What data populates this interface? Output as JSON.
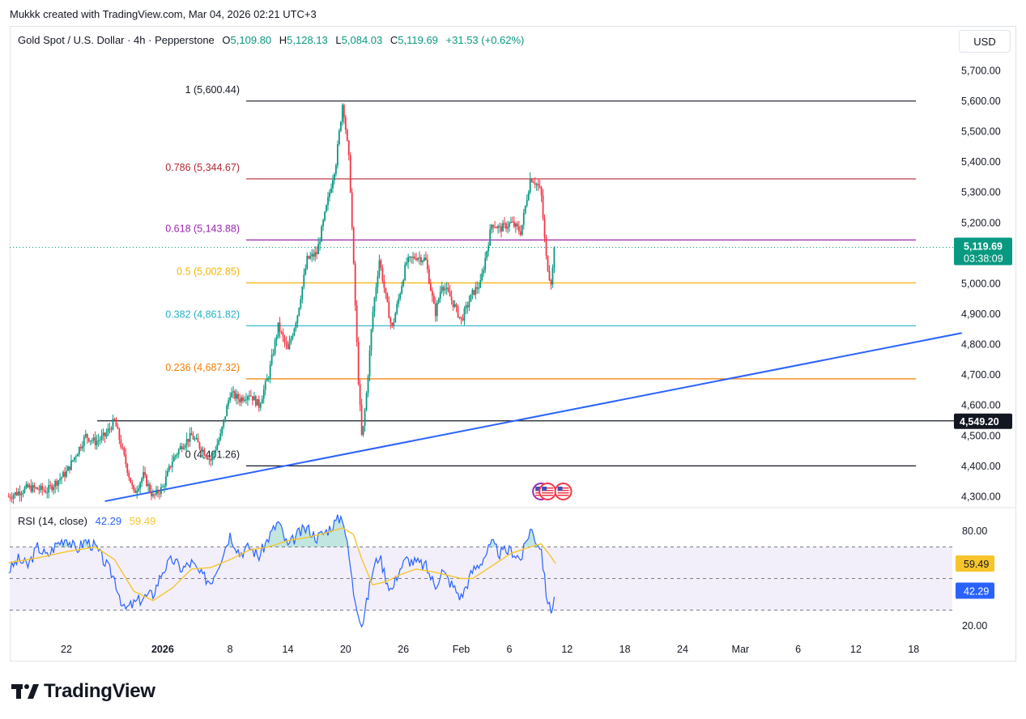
{
  "credit": "Mukkk created with TradingView.com, Mar 04, 2026 02:21 UTC+3",
  "header": {
    "symbol": "Gold Spot / U.S. Dollar · 4h · Pepperstone",
    "o_label": "O",
    "o_value": "5,109.80",
    "h_label": "H",
    "h_value": "5,128.13",
    "l_label": "L",
    "l_value": "5,084.03",
    "c_label": "C",
    "c_value": "5,119.69",
    "change": "+31.53 (+0.62%)"
  },
  "currency_button": "USD",
  "brand": "TradingView",
  "colors": {
    "up": "#089981",
    "down": "#f23645",
    "trendline": "#2962ff",
    "rsi": "#2962ff",
    "rsi_ma": "#f7c52b"
  },
  "chart_data": {
    "type": "candlestick",
    "timeframe": "4h",
    "y_axis": {
      "range": [
        4260,
        5760
      ],
      "ticks": [
        "5,700.00",
        "5,600.00",
        "5,500.00",
        "5,400.00",
        "5,300.00",
        "5,200.00",
        "5,100.00",
        "5,000.00",
        "4,900.00",
        "4,800.00",
        "4,700.00",
        "4,600.00",
        "4,500.00",
        "4,400.00",
        "4,300.00"
      ],
      "tick_values": [
        5700,
        5600,
        5500,
        5400,
        5300,
        5200,
        5100,
        5000,
        4900,
        4800,
        4700,
        4600,
        4500,
        4400,
        4300
      ]
    },
    "x_axis": {
      "ticks": [
        "22",
        "2026",
        "8",
        "14",
        "20",
        "26",
        "Feb",
        "6",
        "12",
        "18",
        "24",
        "Mar",
        "6",
        "12",
        "18"
      ],
      "tick_days": [
        0,
        10,
        17,
        23,
        29,
        35,
        41,
        46,
        52,
        58,
        64,
        70,
        76,
        82,
        88
      ],
      "bold": [
        "2026"
      ]
    },
    "price_label": {
      "value": 5119.69,
      "text": "5,119.69",
      "countdown": "03:38:09"
    },
    "level_label": {
      "value": 4549.2,
      "text": "4,549.20"
    },
    "fibonacci": [
      {
        "ratio": "1",
        "value": 5600.44,
        "text": "1 (5,600.44)",
        "color": "#131722"
      },
      {
        "ratio": "0.786",
        "value": 5344.67,
        "text": "0.786 (5,344.67)",
        "color": "#b22833"
      },
      {
        "ratio": "0.618",
        "value": 5143.88,
        "text": "0.618 (5,143.88)",
        "color": "#9c27b0"
      },
      {
        "ratio": "0.5",
        "value": 5002.85,
        "text": "0.5 (5,002.85)",
        "color": "#f5b400"
      },
      {
        "ratio": "0.382",
        "value": 4861.82,
        "text": "0.382 (4,861.82)",
        "color": "#22b2c4"
      },
      {
        "ratio": "0.236",
        "value": 4687.32,
        "text": "0.236 (4,687.32)",
        "color": "#f57c00"
      },
      {
        "ratio": "0",
        "value": 4401.26,
        "text": "0 (4,401.26)",
        "color": "#131722"
      }
    ],
    "horizontal_level": 4549.2,
    "trendline": {
      "from": {
        "day": 4,
        "price": 4285
      },
      "to": {
        "day": 93,
        "price": 4838
      }
    },
    "price_path": [
      [
        -6,
        4300
      ],
      [
        -4,
        4330
      ],
      [
        -2,
        4320
      ],
      [
        0,
        4380
      ],
      [
        1,
        4440
      ],
      [
        2,
        4500
      ],
      [
        3,
        4480
      ],
      [
        4,
        4500
      ],
      [
        5,
        4550
      ],
      [
        6,
        4430
      ],
      [
        7,
        4310
      ],
      [
        8,
        4370
      ],
      [
        9,
        4300
      ],
      [
        10,
        4330
      ],
      [
        11,
        4420
      ],
      [
        12,
        4470
      ],
      [
        13,
        4500
      ],
      [
        14,
        4460
      ],
      [
        15,
        4420
      ],
      [
        16,
        4500
      ],
      [
        17,
        4640
      ],
      [
        18,
        4620
      ],
      [
        19,
        4640
      ],
      [
        20,
        4600
      ],
      [
        21,
        4700
      ],
      [
        22,
        4860
      ],
      [
        23,
        4780
      ],
      [
        24,
        4900
      ],
      [
        25,
        5080
      ],
      [
        26,
        5100
      ],
      [
        27,
        5250
      ],
      [
        28,
        5400
      ],
      [
        28.7,
        5600
      ],
      [
        29.4,
        5390
      ],
      [
        29.8,
        5080
      ],
      [
        30.3,
        4700
      ],
      [
        30.7,
        4480
      ],
      [
        31.2,
        4650
      ],
      [
        31.8,
        4900
      ],
      [
        32.5,
        5080
      ],
      [
        33.2,
        4950
      ],
      [
        33.8,
        4850
      ],
      [
        34.5,
        4950
      ],
      [
        35.3,
        5070
      ],
      [
        36.3,
        5090
      ],
      [
        37.3,
        5080
      ],
      [
        38.3,
        4900
      ],
      [
        39,
        5000
      ],
      [
        39.8,
        4960
      ],
      [
        41,
        4880
      ],
      [
        42.2,
        4970
      ],
      [
        43,
        5000
      ],
      [
        44.2,
        5200
      ],
      [
        45,
        5180
      ],
      [
        46.2,
        5200
      ],
      [
        47.2,
        5170
      ],
      [
        48.2,
        5350
      ],
      [
        48.8,
        5330
      ],
      [
        49.3,
        5300
      ],
      [
        49.8,
        5090
      ],
      [
        50.3,
        5000
      ],
      [
        50.8,
        5120
      ]
    ],
    "events": [
      {
        "day": 49.3,
        "icons": [
          "us-flag-icon",
          "us-flag-icon"
        ]
      },
      {
        "day": 51.6,
        "icons": [
          "us-flag-icon"
        ]
      }
    ],
    "rsi": {
      "label": "RSI (14, close)",
      "rsi_value": "42.29",
      "ma_value": "59.49",
      "range": [
        10,
        95
      ],
      "ticks": [
        "80.00",
        "20.00"
      ],
      "tick_values": [
        80,
        20
      ],
      "upper_band": 70,
      "middle_band": 50,
      "lower_band": 30,
      "rsi_path": [
        [
          -6,
          55
        ],
        [
          -5,
          62
        ],
        [
          -4,
          58
        ],
        [
          -3,
          70
        ],
        [
          -2,
          64
        ],
        [
          -1,
          72
        ],
        [
          0,
          76
        ],
        [
          1,
          68
        ],
        [
          2,
          74
        ],
        [
          3,
          70
        ],
        [
          4,
          60
        ],
        [
          5,
          50
        ],
        [
          6,
          30
        ],
        [
          7,
          34
        ],
        [
          8,
          38
        ],
        [
          9,
          40
        ],
        [
          10,
          55
        ],
        [
          11,
          62
        ],
        [
          12,
          56
        ],
        [
          13,
          60
        ],
        [
          14,
          52
        ],
        [
          15,
          48
        ],
        [
          16,
          62
        ],
        [
          17,
          78
        ],
        [
          18,
          66
        ],
        [
          19,
          70
        ],
        [
          20,
          64
        ],
        [
          21,
          76
        ],
        [
          22,
          86
        ],
        [
          23,
          70
        ],
        [
          24,
          78
        ],
        [
          25,
          82
        ],
        [
          26,
          76
        ],
        [
          27,
          80
        ],
        [
          28,
          86
        ],
        [
          28.7,
          90
        ],
        [
          29.4,
          62
        ],
        [
          29.8,
          42
        ],
        [
          30.3,
          30
        ],
        [
          30.7,
          20
        ],
        [
          31.2,
          35
        ],
        [
          31.8,
          55
        ],
        [
          32.5,
          65
        ],
        [
          33.2,
          50
        ],
        [
          33.8,
          42
        ],
        [
          34.5,
          55
        ],
        [
          35.3,
          62
        ],
        [
          36.3,
          60
        ],
        [
          37.3,
          58
        ],
        [
          38.3,
          45
        ],
        [
          39,
          55
        ],
        [
          39.8,
          48
        ],
        [
          41,
          38
        ],
        [
          42.2,
          55
        ],
        [
          43,
          60
        ],
        [
          44.2,
          72
        ],
        [
          45,
          66
        ],
        [
          46.2,
          68
        ],
        [
          47.2,
          62
        ],
        [
          48.2,
          82
        ],
        [
          48.8,
          74
        ],
        [
          49.3,
          70
        ],
        [
          49.8,
          42
        ],
        [
          50.3,
          28
        ],
        [
          50.8,
          42.29
        ]
      ],
      "ma_path": [
        [
          -6,
          60
        ],
        [
          -3,
          63
        ],
        [
          0,
          67
        ],
        [
          3,
          70
        ],
        [
          5,
          62
        ],
        [
          7,
          42
        ],
        [
          9,
          36
        ],
        [
          11,
          44
        ],
        [
          13,
          56
        ],
        [
          15,
          57
        ],
        [
          17,
          62
        ],
        [
          19,
          68
        ],
        [
          21,
          70
        ],
        [
          23,
          74
        ],
        [
          25,
          76
        ],
        [
          27,
          79
        ],
        [
          28.7,
          82
        ],
        [
          29.8,
          78
        ],
        [
          30.7,
          62
        ],
        [
          31.8,
          46
        ],
        [
          33.2,
          48
        ],
        [
          34.5,
          52
        ],
        [
          36.3,
          56
        ],
        [
          38.3,
          54
        ],
        [
          41,
          50
        ],
        [
          42.2,
          50
        ],
        [
          44.2,
          58
        ],
        [
          46.2,
          66
        ],
        [
          48.2,
          70
        ],
        [
          49.3,
          72
        ],
        [
          50.3,
          64
        ],
        [
          50.8,
          59.49
        ]
      ]
    }
  }
}
